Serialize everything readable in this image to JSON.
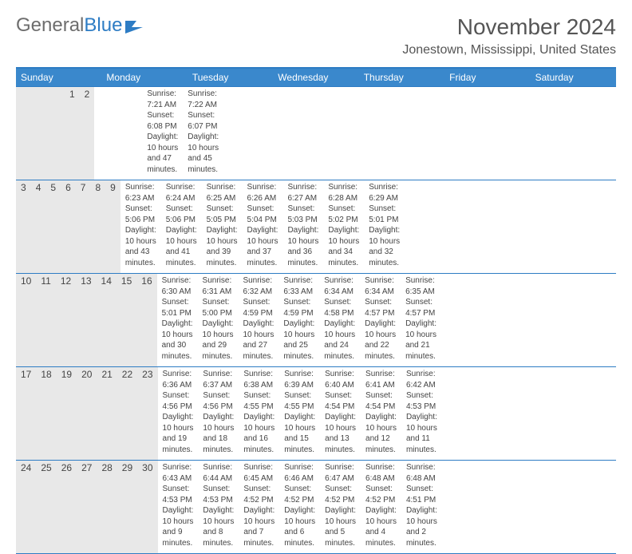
{
  "brand": {
    "w1": "General",
    "w2": "Blue"
  },
  "title": "November 2024",
  "location": "Jonestown, Mississippi, United States",
  "colors": {
    "accent": "#3a88cc",
    "accent_border": "#2d7cc4",
    "daynum_bg": "#e8e8e8",
    "text": "#444444",
    "title_text": "#555555"
  },
  "day_headers": [
    "Sunday",
    "Monday",
    "Tuesday",
    "Wednesday",
    "Thursday",
    "Friday",
    "Saturday"
  ],
  "weeks": [
    [
      null,
      null,
      null,
      null,
      null,
      {
        "n": "1",
        "sr": "Sunrise: 7:21 AM",
        "ss": "Sunset: 6:08 PM",
        "d1": "Daylight: 10 hours",
        "d2": "and 47 minutes."
      },
      {
        "n": "2",
        "sr": "Sunrise: 7:22 AM",
        "ss": "Sunset: 6:07 PM",
        "d1": "Daylight: 10 hours",
        "d2": "and 45 minutes."
      }
    ],
    [
      {
        "n": "3",
        "sr": "Sunrise: 6:23 AM",
        "ss": "Sunset: 5:06 PM",
        "d1": "Daylight: 10 hours",
        "d2": "and 43 minutes."
      },
      {
        "n": "4",
        "sr": "Sunrise: 6:24 AM",
        "ss": "Sunset: 5:06 PM",
        "d1": "Daylight: 10 hours",
        "d2": "and 41 minutes."
      },
      {
        "n": "5",
        "sr": "Sunrise: 6:25 AM",
        "ss": "Sunset: 5:05 PM",
        "d1": "Daylight: 10 hours",
        "d2": "and 39 minutes."
      },
      {
        "n": "6",
        "sr": "Sunrise: 6:26 AM",
        "ss": "Sunset: 5:04 PM",
        "d1": "Daylight: 10 hours",
        "d2": "and 37 minutes."
      },
      {
        "n": "7",
        "sr": "Sunrise: 6:27 AM",
        "ss": "Sunset: 5:03 PM",
        "d1": "Daylight: 10 hours",
        "d2": "and 36 minutes."
      },
      {
        "n": "8",
        "sr": "Sunrise: 6:28 AM",
        "ss": "Sunset: 5:02 PM",
        "d1": "Daylight: 10 hours",
        "d2": "and 34 minutes."
      },
      {
        "n": "9",
        "sr": "Sunrise: 6:29 AM",
        "ss": "Sunset: 5:01 PM",
        "d1": "Daylight: 10 hours",
        "d2": "and 32 minutes."
      }
    ],
    [
      {
        "n": "10",
        "sr": "Sunrise: 6:30 AM",
        "ss": "Sunset: 5:01 PM",
        "d1": "Daylight: 10 hours",
        "d2": "and 30 minutes."
      },
      {
        "n": "11",
        "sr": "Sunrise: 6:31 AM",
        "ss": "Sunset: 5:00 PM",
        "d1": "Daylight: 10 hours",
        "d2": "and 29 minutes."
      },
      {
        "n": "12",
        "sr": "Sunrise: 6:32 AM",
        "ss": "Sunset: 4:59 PM",
        "d1": "Daylight: 10 hours",
        "d2": "and 27 minutes."
      },
      {
        "n": "13",
        "sr": "Sunrise: 6:33 AM",
        "ss": "Sunset: 4:59 PM",
        "d1": "Daylight: 10 hours",
        "d2": "and 25 minutes."
      },
      {
        "n": "14",
        "sr": "Sunrise: 6:34 AM",
        "ss": "Sunset: 4:58 PM",
        "d1": "Daylight: 10 hours",
        "d2": "and 24 minutes."
      },
      {
        "n": "15",
        "sr": "Sunrise: 6:34 AM",
        "ss": "Sunset: 4:57 PM",
        "d1": "Daylight: 10 hours",
        "d2": "and 22 minutes."
      },
      {
        "n": "16",
        "sr": "Sunrise: 6:35 AM",
        "ss": "Sunset: 4:57 PM",
        "d1": "Daylight: 10 hours",
        "d2": "and 21 minutes."
      }
    ],
    [
      {
        "n": "17",
        "sr": "Sunrise: 6:36 AM",
        "ss": "Sunset: 4:56 PM",
        "d1": "Daylight: 10 hours",
        "d2": "and 19 minutes."
      },
      {
        "n": "18",
        "sr": "Sunrise: 6:37 AM",
        "ss": "Sunset: 4:56 PM",
        "d1": "Daylight: 10 hours",
        "d2": "and 18 minutes."
      },
      {
        "n": "19",
        "sr": "Sunrise: 6:38 AM",
        "ss": "Sunset: 4:55 PM",
        "d1": "Daylight: 10 hours",
        "d2": "and 16 minutes."
      },
      {
        "n": "20",
        "sr": "Sunrise: 6:39 AM",
        "ss": "Sunset: 4:55 PM",
        "d1": "Daylight: 10 hours",
        "d2": "and 15 minutes."
      },
      {
        "n": "21",
        "sr": "Sunrise: 6:40 AM",
        "ss": "Sunset: 4:54 PM",
        "d1": "Daylight: 10 hours",
        "d2": "and 13 minutes."
      },
      {
        "n": "22",
        "sr": "Sunrise: 6:41 AM",
        "ss": "Sunset: 4:54 PM",
        "d1": "Daylight: 10 hours",
        "d2": "and 12 minutes."
      },
      {
        "n": "23",
        "sr": "Sunrise: 6:42 AM",
        "ss": "Sunset: 4:53 PM",
        "d1": "Daylight: 10 hours",
        "d2": "and 11 minutes."
      }
    ],
    [
      {
        "n": "24",
        "sr": "Sunrise: 6:43 AM",
        "ss": "Sunset: 4:53 PM",
        "d1": "Daylight: 10 hours",
        "d2": "and 9 minutes."
      },
      {
        "n": "25",
        "sr": "Sunrise: 6:44 AM",
        "ss": "Sunset: 4:53 PM",
        "d1": "Daylight: 10 hours",
        "d2": "and 8 minutes."
      },
      {
        "n": "26",
        "sr": "Sunrise: 6:45 AM",
        "ss": "Sunset: 4:52 PM",
        "d1": "Daylight: 10 hours",
        "d2": "and 7 minutes."
      },
      {
        "n": "27",
        "sr": "Sunrise: 6:46 AM",
        "ss": "Sunset: 4:52 PM",
        "d1": "Daylight: 10 hours",
        "d2": "and 6 minutes."
      },
      {
        "n": "28",
        "sr": "Sunrise: 6:47 AM",
        "ss": "Sunset: 4:52 PM",
        "d1": "Daylight: 10 hours",
        "d2": "and 5 minutes."
      },
      {
        "n": "29",
        "sr": "Sunrise: 6:48 AM",
        "ss": "Sunset: 4:52 PM",
        "d1": "Daylight: 10 hours",
        "d2": "and 4 minutes."
      },
      {
        "n": "30",
        "sr": "Sunrise: 6:48 AM",
        "ss": "Sunset: 4:51 PM",
        "d1": "Daylight: 10 hours",
        "d2": "and 2 minutes."
      }
    ]
  ]
}
